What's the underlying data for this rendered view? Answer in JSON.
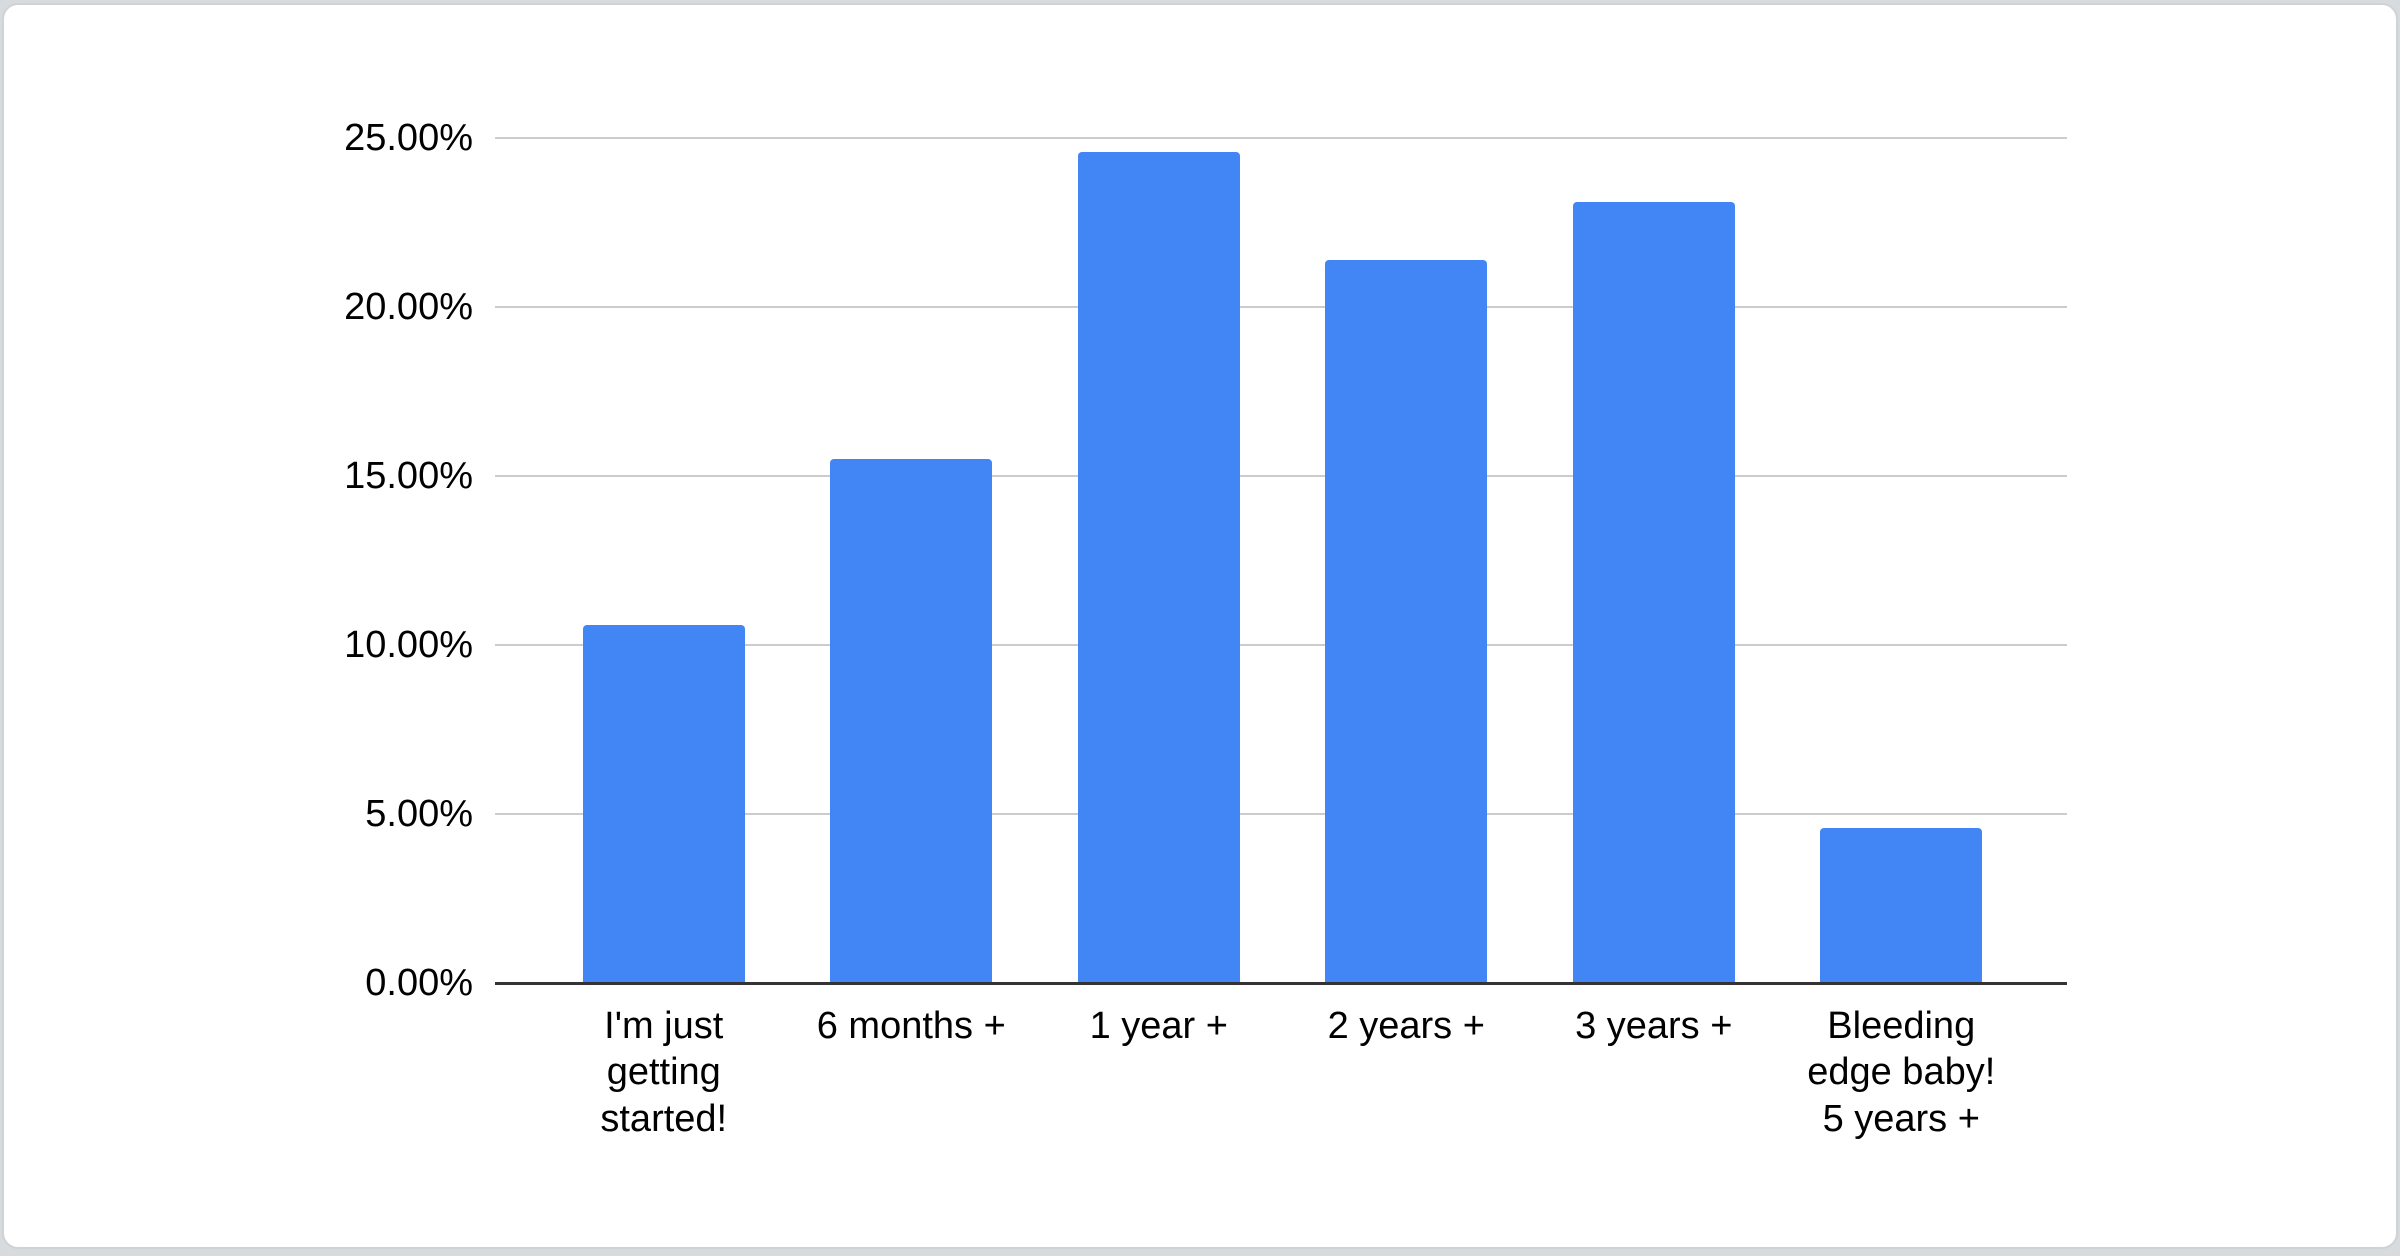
{
  "page": {
    "background_color": "#d8dbdd",
    "card_background": "#ffffff",
    "card_border_color": "#ced3d6"
  },
  "chart_data": {
    "type": "bar",
    "title": "",
    "xlabel": "",
    "ylabel": "",
    "categories": [
      "I'm just getting started!",
      "6 months +",
      "1 year +",
      "2 years +",
      "3 years +",
      "Bleeding edge baby! 5 years +"
    ],
    "category_display_lines": [
      [
        "I'm just",
        "getting",
        "started!"
      ],
      [
        "6 months +"
      ],
      [
        "1 year +"
      ],
      [
        "2 years +"
      ],
      [
        "3 years +"
      ],
      [
        "Bleeding",
        "edge baby!",
        "5 years +"
      ]
    ],
    "values": [
      10.6,
      15.5,
      24.6,
      21.4,
      23.1,
      4.6
    ],
    "value_unit": "%",
    "ylim": [
      0,
      25
    ],
    "y_tick_interval": 5,
    "y_tick_labels": [
      "0.00%",
      "5.00%",
      "10.00%",
      "15.00%",
      "20.00%",
      "25.00%"
    ],
    "grid": true,
    "legend": "none",
    "bar_color": "#4285F4",
    "gridline_color": "#cccccc",
    "baseline_color": "#333333",
    "label_color": "#000000"
  }
}
